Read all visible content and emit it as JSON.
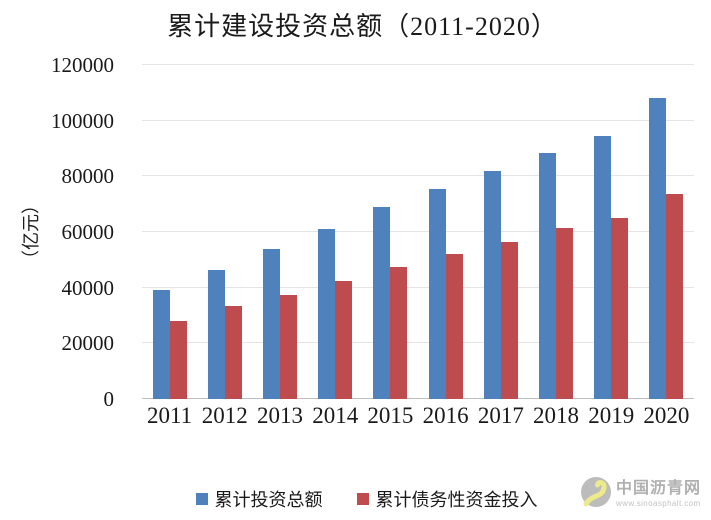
{
  "chart_data": {
    "type": "bar",
    "title": "累计建设投资总额（2011-2020）",
    "ylabel": "（亿元）",
    "xlabel": "",
    "categories": [
      "2011",
      "2012",
      "2013",
      "2014",
      "2015",
      "2016",
      "2017",
      "2018",
      "2019",
      "2020"
    ],
    "series": [
      {
        "name": "累计投资总额",
        "color": "#4F81BD",
        "values": [
          39000,
          46500,
          54000,
          61000,
          69000,
          75500,
          82000,
          88500,
          94500,
          108000
        ]
      },
      {
        "name": "累计债务性资金投入",
        "color": "#BE4B4D",
        "values": [
          28000,
          33500,
          37500,
          42500,
          47500,
          52000,
          56500,
          61500,
          65000,
          73500
        ]
      }
    ],
    "ylim": [
      0,
      120000
    ],
    "ytick_step": 20000,
    "grid": "horizontal",
    "grid_color": "#E4E4E4",
    "axis_color": "#BFBFBF",
    "legend_position": "bottom"
  },
  "watermark": {
    "name": "中国沥青网",
    "url": "www.sinoasphalt.com"
  }
}
